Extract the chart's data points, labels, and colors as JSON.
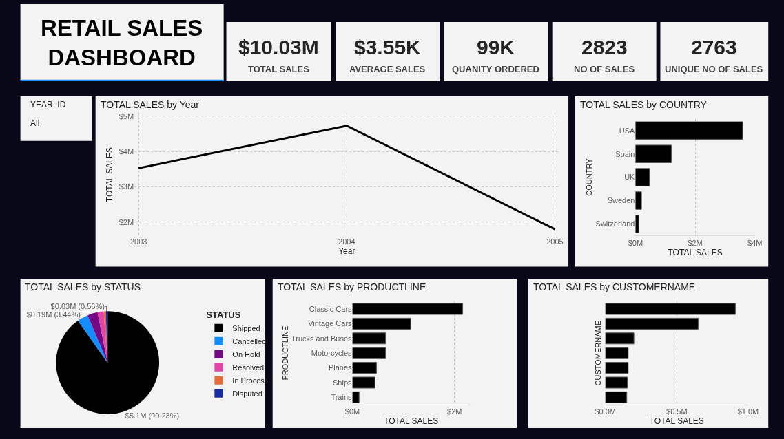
{
  "chart_data": [
    {
      "type": "other",
      "title": "RETAIL SALES DASHBOARD",
      "annotations": [
        "$10.03M",
        "TOTAL SALES",
        "$3.55K",
        "AVERAGE SALES",
        "99K",
        "QUANITY ORDERED",
        "2823",
        "NO OF SALES",
        "2763",
        "UNIQUE NO OF SALES",
        "YEAR_ID",
        "All"
      ]
    },
    {
      "type": "line",
      "title": "TOTAL SALES by Year",
      "xlabel": "Year",
      "ylabel": "TOTAL SALES",
      "categories": [
        "2003",
        "2004",
        "2005"
      ],
      "series": [
        {
          "color": "#000000",
          "values": [
            3.53,
            4.73,
            1.8
          ]
        }
      ],
      "ylim": [
        1.6,
        5.1
      ],
      "yticks": [
        {
          "value": 2,
          "label": "$2M"
        },
        {
          "value": 3,
          "label": "$3M"
        },
        {
          "value": 4,
          "label": "$4M"
        },
        {
          "value": 5,
          "label": "$5M"
        }
      ],
      "grid": true
    },
    {
      "type": "bar",
      "orientation": "horizontal",
      "title": "TOTAL SALES by COUNTRY",
      "xlabel": "TOTAL SALES",
      "ylabel": "COUNTRY",
      "categories": [
        "USA",
        "Spain",
        "UK",
        "Sweden",
        "Switzerland"
      ],
      "series": [
        {
          "color": "#000000",
          "values": [
            3.59,
            1.2,
            0.47,
            0.2,
            0.11
          ]
        }
      ],
      "xlim": [
        0,
        4
      ],
      "xticks": [
        {
          "value": 0,
          "label": "$0M"
        },
        {
          "value": 2,
          "label": "$2M"
        },
        {
          "value": 4,
          "label": "$4M"
        }
      ],
      "grid": "x"
    },
    {
      "type": "pie",
      "title": "TOTAL SALES by STATUS",
      "legend_title": "STATUS",
      "legend": "right",
      "categories": [
        "Shipped",
        "Cancelled",
        "On Hold",
        "Resolved",
        "In Process",
        "Disputed"
      ],
      "values": [
        90.23,
        3.44,
        3.2,
        1.9,
        0.67,
        0.56
      ],
      "colors": [
        "#000000",
        "#118dff",
        "#750985",
        "#e044a7",
        "#e66c37",
        "#1a2ba0"
      ],
      "value_labels": [
        "$5.1M (90.23%)",
        "$0.19M (3.44%)",
        null,
        null,
        null,
        "$0.03M (0.56%)"
      ]
    },
    {
      "type": "bar",
      "orientation": "horizontal",
      "title": "TOTAL SALES by PRODUCTLINE",
      "xlabel": "TOTAL SALES",
      "ylabel": "PRODUCTLINE",
      "categories": [
        "Classic Cars",
        "Vintage Cars",
        "Trucks and Buses",
        "Motorcycles",
        "Planes",
        "Ships",
        "Trains"
      ],
      "series": [
        {
          "color": "#000000",
          "values": [
            2.16,
            1.14,
            0.65,
            0.65,
            0.47,
            0.44,
            0.13
          ]
        }
      ],
      "xlim": [
        0,
        2.3
      ],
      "xticks": [
        {
          "value": 0,
          "label": "$0M"
        },
        {
          "value": 2,
          "label": "$2M"
        }
      ],
      "grid": "x"
    },
    {
      "type": "bar",
      "orientation": "horizontal",
      "title": "TOTAL SALES by CUSTOMERNAME",
      "xlabel": "TOTAL SALES",
      "ylabel": "CUSTOMERNAME",
      "categories": [
        null,
        null,
        null,
        null,
        null,
        null,
        null
      ],
      "series": [
        {
          "color": "#000000",
          "values": [
            0.91,
            0.65,
            0.2,
            0.16,
            0.16,
            0.155,
            0.15
          ]
        }
      ],
      "xlim": [
        0,
        1.0
      ],
      "xticks": [
        {
          "value": 0,
          "label": "$0.0M"
        },
        {
          "value": 0.5,
          "label": "$0.5M"
        },
        {
          "value": 1.0,
          "label": "$1.0M"
        }
      ],
      "grid": "x"
    }
  ]
}
